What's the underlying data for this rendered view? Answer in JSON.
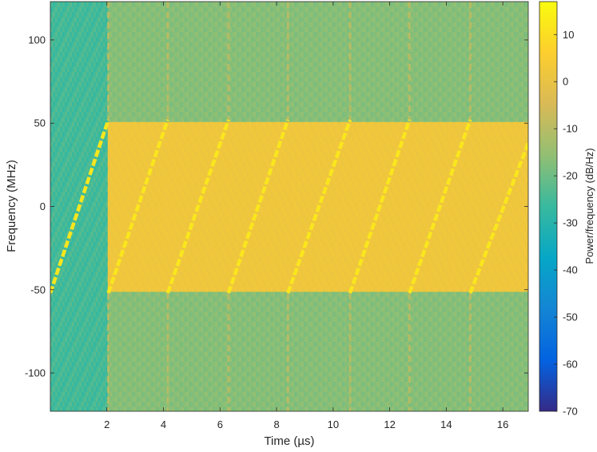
{
  "chart_data": {
    "type": "heatmap",
    "xlabel": "Time (µs)",
    "ylabel": "Frequency (MHz)",
    "xlim": [
      0,
      16.9
    ],
    "ylim": [
      -123,
      123
    ],
    "x_ticks": [
      2,
      4,
      6,
      8,
      10,
      12,
      14,
      16
    ],
    "x_tick_labels": [
      "2",
      "4",
      "6",
      "8",
      "10",
      "12",
      "14",
      "16"
    ],
    "y_ticks": [
      -100,
      -50,
      0,
      50,
      100
    ],
    "y_tick_labels": [
      "-100",
      "-50",
      "0",
      "50",
      "100"
    ],
    "colorbar": {
      "label": "Power/frequency (dB/Hz)",
      "range": [
        -70,
        17
      ],
      "ticks": [
        -70,
        -60,
        -50,
        -40,
        -30,
        -20,
        -10,
        0,
        10
      ],
      "tick_labels": [
        "-70",
        "-60",
        "-50",
        "-40",
        "-30",
        "-20",
        "-10",
        "0",
        "10"
      ],
      "colormap": "parula"
    },
    "background_level_db": {
      "noise_segment_0_to_2us": -25,
      "out_of_band": -17,
      "in_band": 2
    },
    "in_band_frequency_range_mhz": [
      -52,
      52
    ],
    "chirp_segments": [
      {
        "t_start": 0.0,
        "t_end": 2.05,
        "f_start": -52,
        "f_end": 52,
        "peak_db": 12
      },
      {
        "t_start": 2.05,
        "t_end": 4.15,
        "f_start": -52,
        "f_end": 52,
        "peak_db": 12
      },
      {
        "t_start": 4.15,
        "t_end": 6.3,
        "f_start": -52,
        "f_end": 52,
        "peak_db": 12
      },
      {
        "t_start": 6.3,
        "t_end": 8.4,
        "f_start": -52,
        "f_end": 52,
        "peak_db": 12
      },
      {
        "t_start": 8.4,
        "t_end": 10.6,
        "f_start": -52,
        "f_end": 52,
        "peak_db": 12
      },
      {
        "t_start": 10.6,
        "t_end": 12.7,
        "f_start": -52,
        "f_end": 52,
        "peak_db": 12
      },
      {
        "t_start": 12.7,
        "t_end": 14.85,
        "f_start": -52,
        "f_end": 52,
        "peak_db": 12
      },
      {
        "t_start": 14.85,
        "t_end": 16.9,
        "f_start": -52,
        "f_end": 38,
        "peak_db": 12
      }
    ],
    "segment_boundaries_us": [
      2.05,
      4.15,
      6.3,
      8.4,
      10.6,
      12.7,
      14.85
    ]
  }
}
